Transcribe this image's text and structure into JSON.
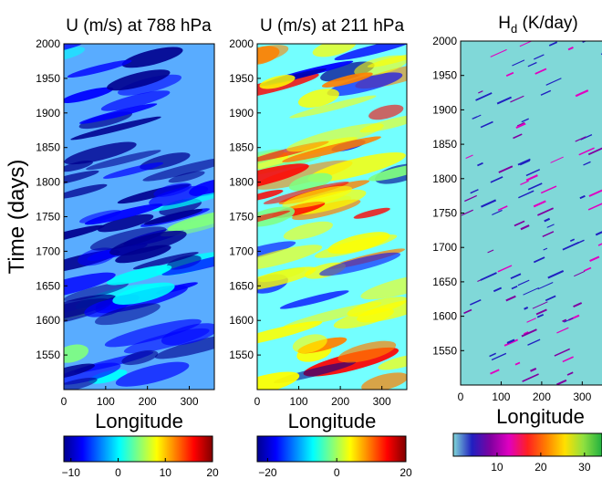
{
  "chart_data": [
    {
      "type": "heatmap",
      "title": "U (m/s) at 788 hPa",
      "ylabel": "Time (days)",
      "xlabel": "Longitude",
      "xlim": [
        0,
        360
      ],
      "xticks": [
        0,
        100,
        200,
        300
      ],
      "ylim": [
        1500,
        2000
      ],
      "yticks": [
        1550,
        1600,
        1650,
        1700,
        1750,
        1800,
        1850,
        1900,
        1950,
        2000
      ],
      "colorbar": {
        "clim": [
          -11.5,
          20
        ],
        "ticks": [
          {
            "value": -10,
            "label": "−10"
          },
          0,
          10,
          20
        ],
        "colors": [
          "#00008f",
          "#0000ff",
          "#0080ff",
          "#00ffff",
          "#80ff80",
          "#ffff00",
          "#ff8000",
          "#ff0000",
          "#800000"
        ]
      }
    },
    {
      "type": "heatmap",
      "title": "U (m/s) at 211 hPa",
      "xlabel": "Longitude",
      "xlim": [
        0,
        360
      ],
      "xticks": [
        0,
        100,
        200,
        300
      ],
      "ylim": [
        1500,
        2000
      ],
      "yticks": [
        1550,
        1600,
        1650,
        1700,
        1750,
        1800,
        1850,
        1900,
        1950,
        2000
      ],
      "colorbar": {
        "clim": [
          -23,
          20
        ],
        "ticks": [
          {
            "value": -20,
            "label": "−20"
          },
          0,
          20
        ],
        "colors": [
          "#00008f",
          "#0000ff",
          "#0080ff",
          "#00ffff",
          "#80ff80",
          "#ffff00",
          "#ff8000",
          "#ff0000",
          "#800000"
        ]
      }
    },
    {
      "type": "heatmap",
      "title": "H",
      "title_subscript": "d",
      "title_suffix": " (K/day)",
      "xlabel": "Longitude",
      "xlim": [
        0,
        360
      ],
      "xticks": [
        0,
        100,
        200,
        300
      ],
      "ylim": [
        1500,
        2000
      ],
      "yticks": [
        1550,
        1600,
        1650,
        1700,
        1750,
        1800,
        1850,
        1900,
        1950,
        2000
      ],
      "colorbar": {
        "clim": [
          0,
          34
        ],
        "ticks": [
          10,
          20,
          30
        ],
        "colors": [
          "#80d8d8",
          "#2020c0",
          "#8000a0",
          "#e000c0",
          "#ff2020",
          "#ff8000",
          "#ffe000",
          "#90e040",
          "#20b040"
        ]
      }
    }
  ]
}
